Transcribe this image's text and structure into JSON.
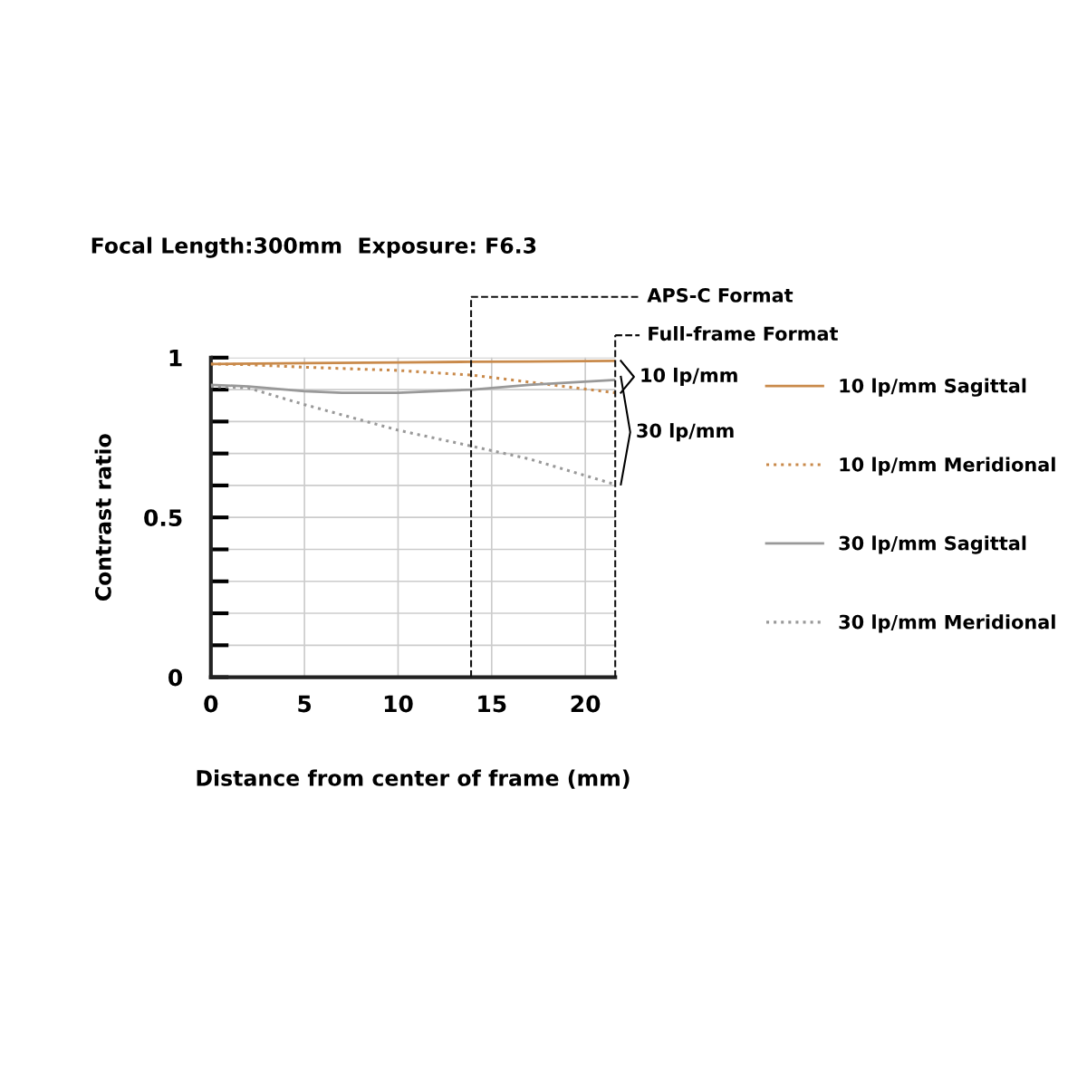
{
  "chart_data": {
    "type": "line",
    "title": "Focal Length:300mm  Exposure: F6.3",
    "xlabel": "Distance from center of frame (mm)",
    "ylabel": "Contrast ratio",
    "series": [
      {
        "name": "10 lp/mm Sagittal",
        "color": "#c98a4b",
        "line_style": "solid",
        "x": [
          0,
          5,
          10,
          14,
          17,
          21.6
        ],
        "values": [
          0.98,
          0.983,
          0.985,
          0.987,
          0.988,
          0.99
        ]
      },
      {
        "name": "10 lp/mm Meridional",
        "color": "#c98a4b",
        "line_style": "dotted",
        "x": [
          0,
          2,
          5,
          10,
          14,
          17.5,
          21.6
        ],
        "values": [
          0.98,
          0.978,
          0.97,
          0.96,
          0.945,
          0.92,
          0.89
        ]
      },
      {
        "name": "30 lp/mm Sagittal",
        "color": "#999999",
        "line_style": "solid",
        "x": [
          0,
          2,
          5,
          7,
          10,
          14,
          17,
          21.6
        ],
        "values": [
          0.915,
          0.91,
          0.895,
          0.89,
          0.89,
          0.9,
          0.915,
          0.93
        ]
      },
      {
        "name": "30 lp/mm Meridional",
        "color": "#999999",
        "line_style": "dotted",
        "x": [
          0,
          2,
          5,
          10,
          14,
          17,
          21.6
        ],
        "values": [
          0.91,
          0.905,
          0.853,
          0.773,
          0.722,
          0.683,
          0.603
        ]
      }
    ],
    "xlim": [
      0,
      21.6
    ],
    "ylim": [
      0,
      1
    ],
    "xticks": [
      0,
      5,
      10,
      15,
      20
    ],
    "yticks": [
      0,
      {
        "value": 0.1,
        "label": null
      },
      {
        "value": 0.2,
        "label": null
      },
      {
        "value": 0.3,
        "label": null
      },
      {
        "value": 0.4,
        "label": null
      },
      0.5,
      {
        "value": 0.6,
        "label": null
      },
      {
        "value": 0.7,
        "label": null
      },
      {
        "value": 0.8,
        "label": null
      },
      {
        "value": 0.9,
        "label": null
      },
      1
    ],
    "grid": true,
    "legend": "right",
    "marker": "none",
    "ref_lines": [
      {
        "axis": "x",
        "value": 13.9,
        "label": "APS-C Format",
        "color": "#111111",
        "line_style": "dashed"
      },
      {
        "axis": "x",
        "value": 21.6,
        "label": "Full-frame Format",
        "color": "#111111",
        "line_style": "dashed"
      }
    ],
    "annotations": [
      "10 lp/mm",
      "30 lp/mm"
    ]
  }
}
